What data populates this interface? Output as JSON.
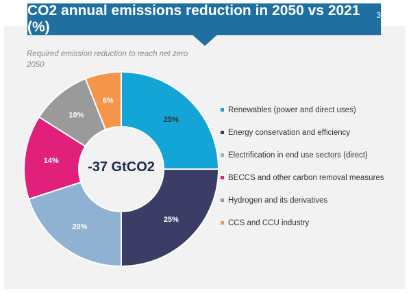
{
  "header": {
    "title": "CO2 annual emissions reduction in 2050 vs 2021 (%)",
    "footnote": "3"
  },
  "subtitle": "Required emission reduction to reach net zero 2050",
  "chart_data": {
    "type": "pie",
    "center_label": "-37 GtCO2",
    "categories": [
      "Renewables (power and direct uses)",
      "Energy conservation and efficiency",
      "Electrification in end use sectors (direct)",
      "BECCS and other carbon removal measures",
      "Hydrogen and its derivatives",
      "CCS and CCU industry"
    ],
    "values": [
      25,
      25,
      20,
      14,
      10,
      6
    ],
    "data_labels": [
      "25%",
      "25%",
      "20%",
      "14%",
      "10%",
      "6%"
    ],
    "colors": [
      "#12a5d6",
      "#3b3d66",
      "#8fb2d3",
      "#e1207c",
      "#9a9a9a",
      "#f5944b"
    ],
    "label_colors": [
      "#333333",
      "#ffffff",
      "#ffffff",
      "#ffffff",
      "#ffffff",
      "#ffffff"
    ],
    "legend_position": "right",
    "unit": "%"
  }
}
